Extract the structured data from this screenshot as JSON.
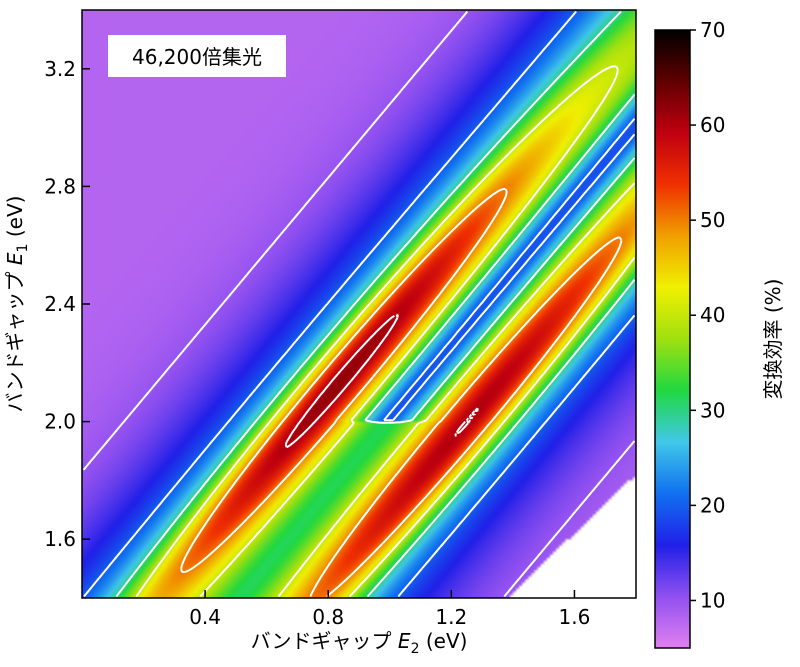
{
  "chart_data": {
    "type": "heatmap",
    "annotation": "46,200倍集光",
    "xlabel": {
      "prefix": "バンドギャップ ",
      "var": "E",
      "sub": "2",
      "unit": " (eV)"
    },
    "ylabel": {
      "prefix": "バンドギャップ ",
      "var": "E",
      "sub": "1",
      "unit": " (eV)"
    },
    "xlim": [
      0.0,
      1.8
    ],
    "ylim": [
      1.4,
      3.4
    ],
    "xticks": [
      0.4,
      0.8,
      1.2,
      1.6
    ],
    "xtick_labels": [
      "0.4",
      "0.8",
      "1.2",
      "1.6"
    ],
    "yticks": [
      1.6,
      2.0,
      2.4,
      2.8,
      3.2
    ],
    "ytick_labels": [
      "1.6",
      "2.0",
      "2.4",
      "2.8",
      "3.2"
    ],
    "colorbar": {
      "label": "変換効率 (%)",
      "range": [
        5,
        70
      ],
      "ticks": [
        10,
        20,
        30,
        40,
        50,
        60,
        70
      ],
      "tick_labels": [
        "10",
        "20",
        "30",
        "40",
        "50",
        "60",
        "70"
      ],
      "colors": [
        "#e080f0",
        "#9050f0",
        "#2020e8",
        "#1070f0",
        "#40c8e8",
        "#20d840",
        "#a0e010",
        "#f0f000",
        "#f0a000",
        "#f03000",
        "#c00010",
        "#600000",
        "#000000"
      ]
    },
    "contour_levels": [
      10,
      20,
      30,
      40,
      50,
      60
    ],
    "peak_efficiency": 66,
    "peaks": [
      {
        "e2": 0.72,
        "e1": 2.0
      },
      {
        "e2": 1.26,
        "e1": 2.0
      }
    ],
    "notes": "White region at bottom-right: E2 > E1 (undefined)."
  }
}
